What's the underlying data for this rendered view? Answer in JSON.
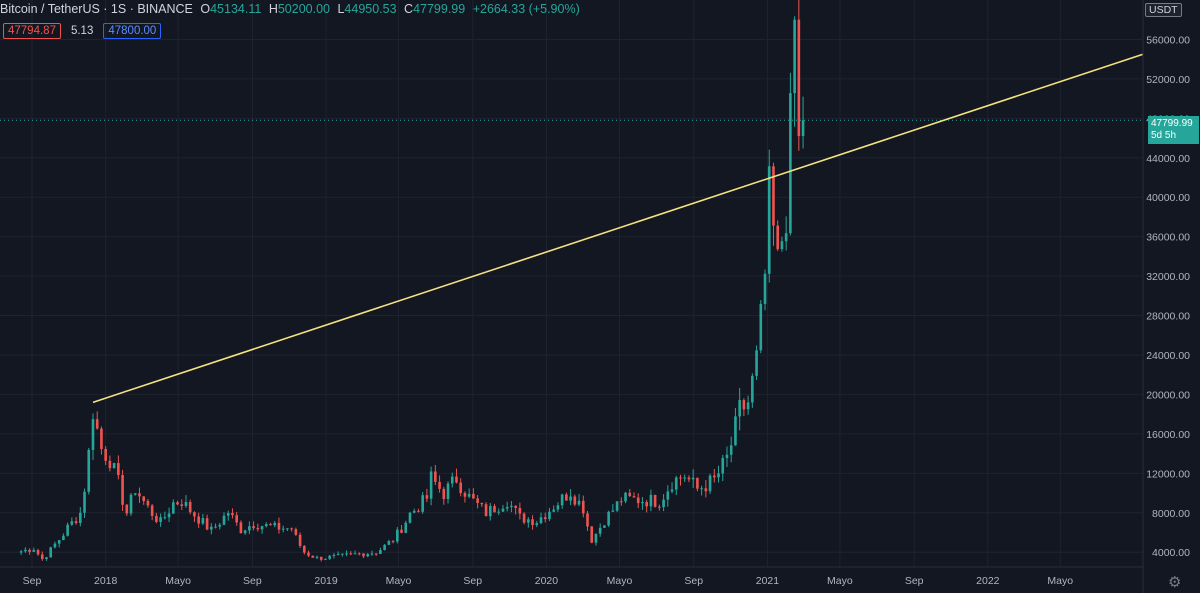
{
  "header": {
    "symbol": "Bitcoin / TetherUS · 1S · BINANCE",
    "open_label": "O",
    "open": "45134.11",
    "high_label": "H",
    "high": "50200.00",
    "low_label": "L",
    "low": "44950.53",
    "close_label": "C",
    "close": "47799.99",
    "change": "+2664.33 (+5.90%)"
  },
  "quote": {
    "bid": "47794.87",
    "spread": "5.13",
    "ask": "47800.00"
  },
  "currency": "USDT",
  "last_price": {
    "price": "47799.99",
    "countdown": "5d 5h"
  },
  "colors": {
    "background": "#131722",
    "up": "#26a69a",
    "down": "#ef5350",
    "trendline": "#f6e27f",
    "grid": "#1f2330",
    "text": "#b2b5be"
  },
  "chart_data": {
    "type": "candlestick",
    "ylim": [
      2500,
      60000
    ],
    "xlim": [
      "2017-07-10",
      "2022-09-15"
    ],
    "y_ticks": [
      "4000.00",
      "8000.00",
      "12000.00",
      "16000.00",
      "20000.00",
      "24000.00",
      "28000.00",
      "32000.00",
      "36000.00",
      "40000.00",
      "44000.00",
      "48000.00",
      "52000.00",
      "56000.00"
    ],
    "x_ticks": [
      {
        "label": "Sep",
        "date": "2017-09-01"
      },
      {
        "label": "2018",
        "date": "2018-01-01"
      },
      {
        "label": "Mayo",
        "date": "2018-05-01"
      },
      {
        "label": "Sep",
        "date": "2018-09-01"
      },
      {
        "label": "2019",
        "date": "2019-01-01"
      },
      {
        "label": "Mayo",
        "date": "2019-05-01"
      },
      {
        "label": "Sep",
        "date": "2019-09-01"
      },
      {
        "label": "2020",
        "date": "2020-01-01"
      },
      {
        "label": "Mayo",
        "date": "2020-05-01"
      },
      {
        "label": "Sep",
        "date": "2020-09-01"
      },
      {
        "label": "2021",
        "date": "2021-01-01"
      },
      {
        "label": "Mayo",
        "date": "2021-05-01"
      },
      {
        "label": "Sep",
        "date": "2021-09-01"
      },
      {
        "label": "2022",
        "date": "2022-01-01"
      },
      {
        "label": "Mayo",
        "date": "2022-05-01"
      }
    ],
    "last_price_line": 47799.99,
    "trendline": {
      "start": [
        "2017-12-11",
        19200
      ],
      "end": [
        "2022-09-15",
        54500
      ]
    },
    "anchors": [
      [
        "2017-08-14",
        4100
      ],
      [
        "2017-09-04",
        4400
      ],
      [
        "2017-09-18",
        3300
      ],
      [
        "2017-10-09",
        4800
      ],
      [
        "2017-10-30",
        6500
      ],
      [
        "2017-11-20",
        8000
      ],
      [
        "2017-12-11",
        18500
      ],
      [
        "2017-12-25",
        14500
      ],
      [
        "2018-01-08",
        13500
      ],
      [
        "2018-01-22",
        11000
      ],
      [
        "2018-02-05",
        8000
      ],
      [
        "2018-02-19",
        10500
      ],
      [
        "2018-03-12",
        8500
      ],
      [
        "2018-04-02",
        7000
      ],
      [
        "2018-04-23",
        9000
      ],
      [
        "2018-05-07",
        9200
      ],
      [
        "2018-06-04",
        7400
      ],
      [
        "2018-06-25",
        6200
      ],
      [
        "2018-07-23",
        8100
      ],
      [
        "2018-08-13",
        6300
      ],
      [
        "2018-09-03",
        6900
      ],
      [
        "2018-10-08",
        6500
      ],
      [
        "2018-11-05",
        6400
      ],
      [
        "2018-11-26",
        4000
      ],
      [
        "2018-12-17",
        3400
      ],
      [
        "2019-01-21",
        3550
      ],
      [
        "2019-02-18",
        3800
      ],
      [
        "2019-03-25",
        4000
      ],
      [
        "2019-04-22",
        5300
      ],
      [
        "2019-05-20",
        7900
      ],
      [
        "2019-06-17",
        9500
      ],
      [
        "2019-06-24",
        11500
      ],
      [
        "2019-07-15",
        10000
      ],
      [
        "2019-08-05",
        11500
      ],
      [
        "2019-08-26",
        9600
      ],
      [
        "2019-09-23",
        8000
      ],
      [
        "2019-10-28",
        9300
      ],
      [
        "2019-11-18",
        7500
      ],
      [
        "2019-12-16",
        7200
      ],
      [
        "2020-01-13",
        8700
      ],
      [
        "2020-02-10",
        10200
      ],
      [
        "2020-03-02",
        8500
      ],
      [
        "2020-03-16",
        5300
      ],
      [
        "2020-04-06",
        7300
      ],
      [
        "2020-05-04",
        9400
      ],
      [
        "2020-06-08",
        9300
      ],
      [
        "2020-07-06",
        9200
      ],
      [
        "2020-07-27",
        11200
      ],
      [
        "2020-08-17",
        11800
      ],
      [
        "2020-09-07",
        10400
      ],
      [
        "2020-10-05",
        11300
      ],
      [
        "2020-10-26",
        13500
      ],
      [
        "2020-11-16",
        18300
      ],
      [
        "2020-11-30",
        19200
      ],
      [
        "2020-12-14",
        23400
      ],
      [
        "2020-12-28",
        32000
      ],
      [
        "2021-01-04",
        40000
      ],
      [
        "2021-01-18",
        33000
      ],
      [
        "2021-02-01",
        39000
      ],
      [
        "2021-02-08",
        47000
      ],
      [
        "2021-02-15",
        57500
      ],
      [
        "2021-02-22",
        45100
      ],
      [
        "2021-03-01",
        47800
      ]
    ]
  }
}
